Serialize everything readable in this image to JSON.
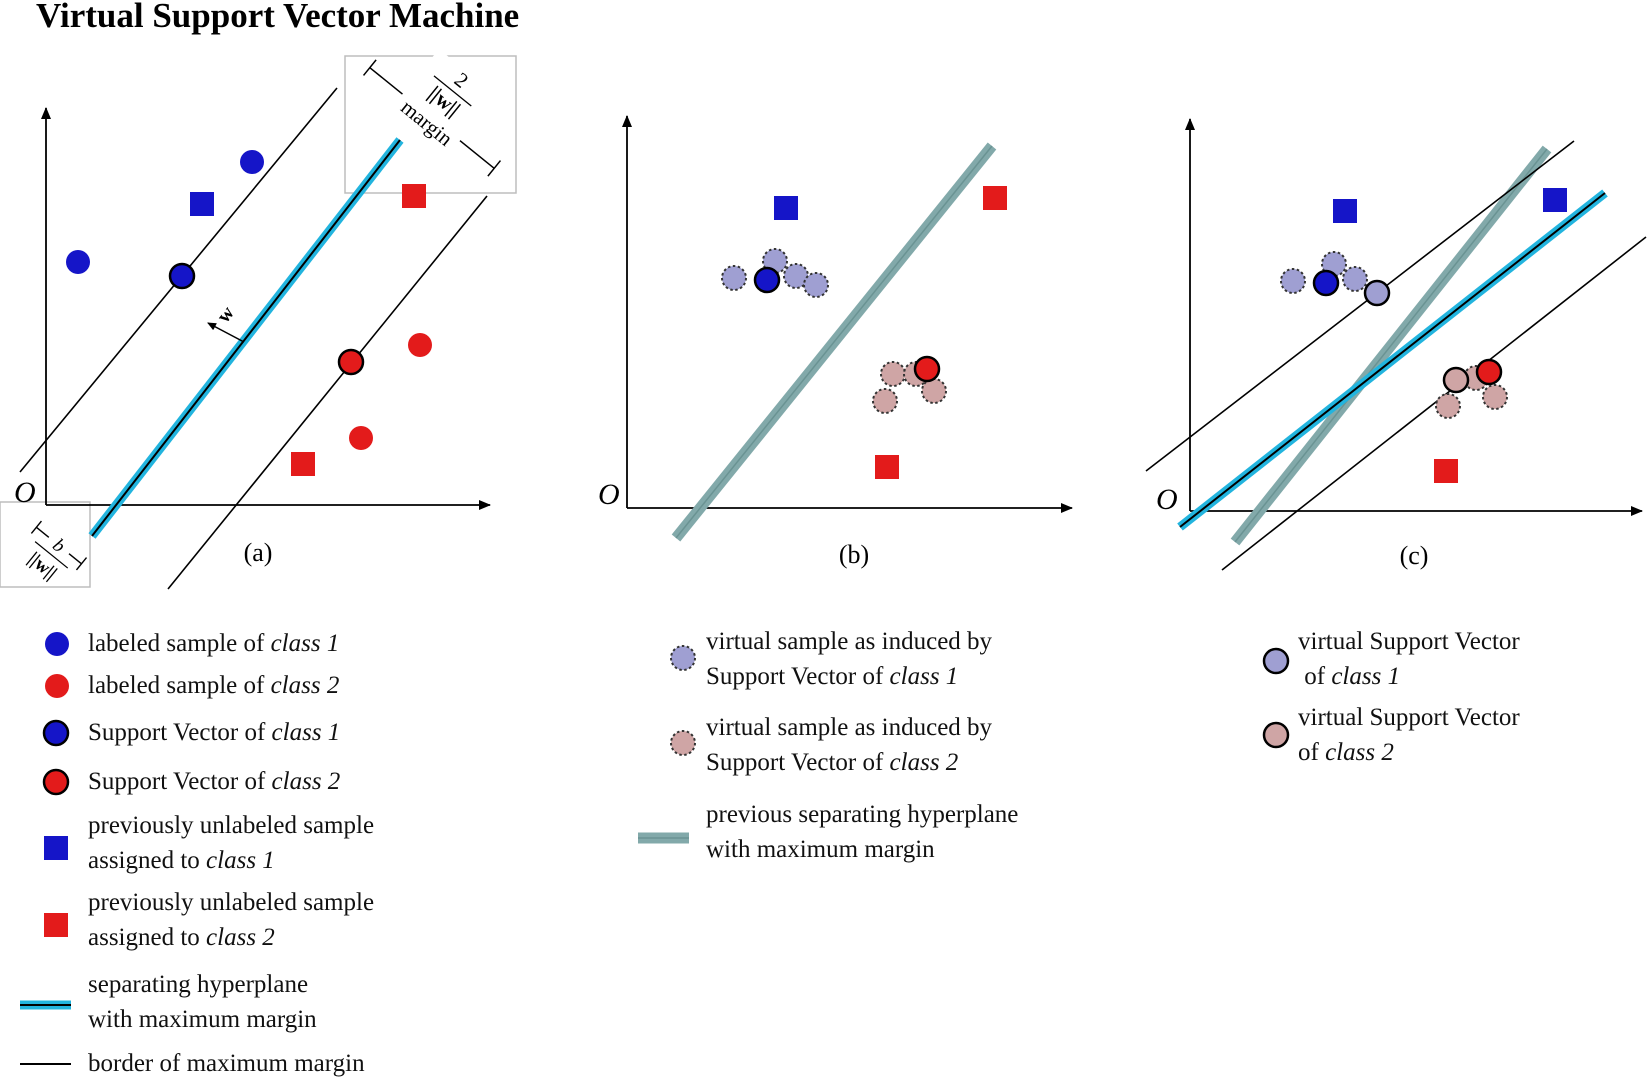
{
  "title": "Virtual Support Vector Machine",
  "colors": {
    "class1": "#1515c8",
    "class2": "#e31b1b",
    "class1_virtual": "#9f9fd2",
    "class2_virtual": "#cfa5a5",
    "hyperplane": "#22b4de",
    "previous_hyperplane": "#82a9aa"
  },
  "panels": [
    {
      "label": "(a)",
      "origin": "O"
    },
    {
      "label": "(b)",
      "origin": "O"
    },
    {
      "label": "(c)",
      "origin": "O"
    }
  ],
  "annotations": {
    "margin_numerator": "2",
    "norm": "||w||",
    "margin_word": "margin",
    "bias": "b",
    "normal_vector": "w"
  },
  "legend": {
    "labeled_1": {
      "text": "labeled sample of ",
      "cls": "class 1"
    },
    "labeled_2": {
      "text": "labeled sample of ",
      "cls": "class 2"
    },
    "sv_1": {
      "text": "Support Vector of ",
      "cls": "class 1"
    },
    "sv_2": {
      "text": "Support Vector of ",
      "cls": "class 2"
    },
    "unlabeled_1": {
      "line1": "previously unlabeled sample",
      "line2": "assigned to ",
      "cls": "class 1"
    },
    "unlabeled_2": {
      "line1": "previously unlabeled sample",
      "line2": "assigned to ",
      "cls": "class 2"
    },
    "hyperplane": {
      "line1": "separating hyperplane",
      "line2": "with maximum margin"
    },
    "border": {
      "text": "border of maximum margin"
    },
    "virtual_1": {
      "line1": "virtual sample as induced by",
      "line2": "Support Vector of ",
      "cls": "class 1"
    },
    "virtual_2": {
      "line1": "virtual sample as induced by",
      "line2": "Support Vector of ",
      "cls": "class 2"
    },
    "prev_hyperplane": {
      "line1": "previous separating hyperplane",
      "line2": "with maximum margin"
    },
    "virtual_sv_1": {
      "line1": "virtual Support Vector",
      "line2": " of ",
      "cls": "class 1"
    },
    "virtual_sv_2": {
      "line1": "virtual Support Vector",
      "line2": "of ",
      "cls": "class 2"
    }
  }
}
